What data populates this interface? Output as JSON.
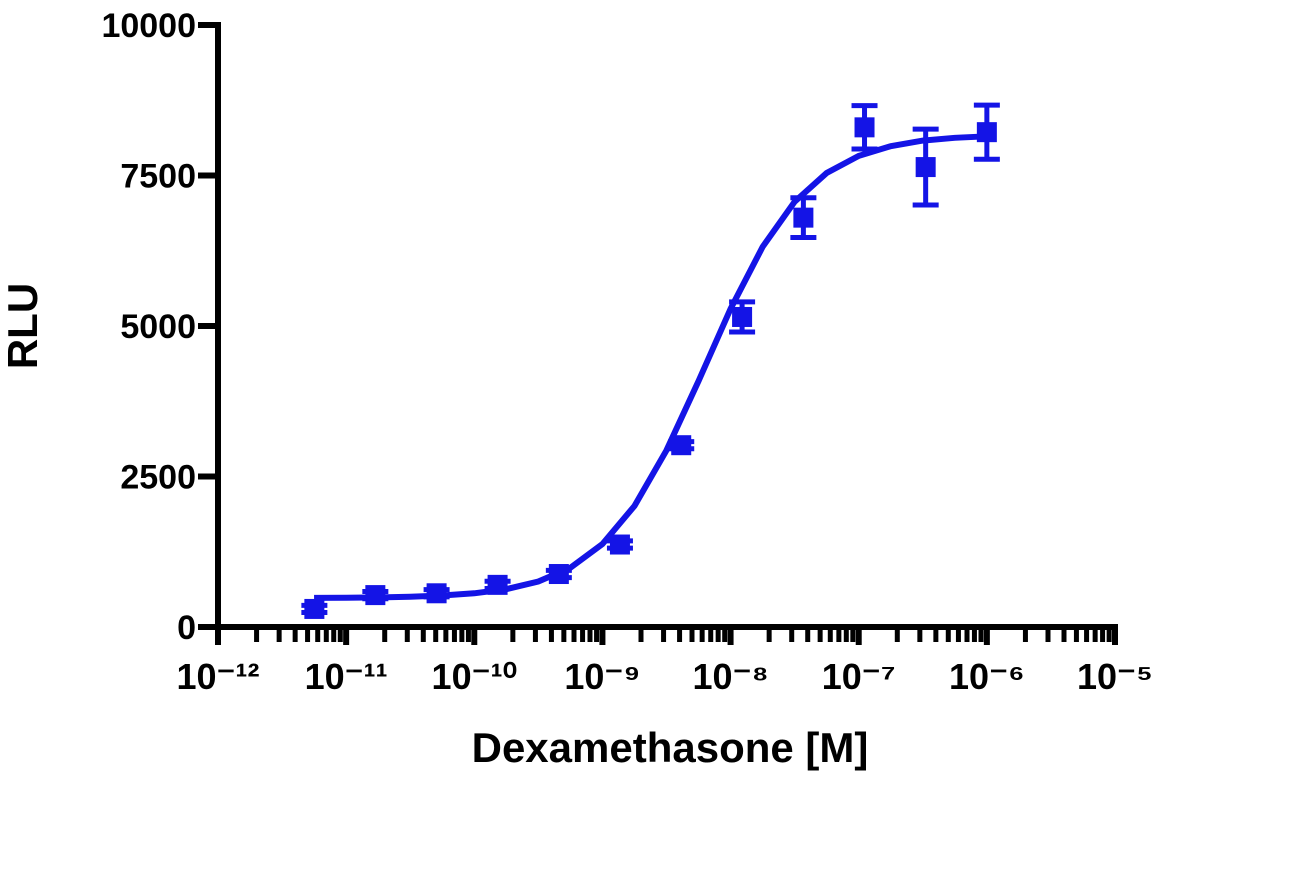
{
  "chart_data": {
    "type": "scatter",
    "xlabel": "Dexamethasone [M]",
    "ylabel": "RLU",
    "xscale": "log",
    "xlim": [
      1e-12,
      1e-05
    ],
    "xticks": [
      {
        "value": 1e-12,
        "label": "10⁻¹²"
      },
      {
        "value": 1e-11,
        "label": "10⁻¹¹"
      },
      {
        "value": 1e-10,
        "label": "10⁻¹⁰"
      },
      {
        "value": 1e-09,
        "label": "10⁻⁹"
      },
      {
        "value": 1e-08,
        "label": "10⁻⁸"
      },
      {
        "value": 1e-07,
        "label": "10⁻⁷"
      },
      {
        "value": 1e-06,
        "label": "10⁻⁶"
      },
      {
        "value": 1e-05,
        "label": "10⁻⁵"
      }
    ],
    "xminorticks": [
      2e-12,
      3e-12,
      4e-12,
      5e-12,
      6e-12,
      7e-12,
      8e-12,
      9e-12,
      2e-11,
      3e-11,
      4e-11,
      5e-11,
      6e-11,
      7e-11,
      8e-11,
      9e-11,
      2e-10,
      3e-10,
      4e-10,
      5e-10,
      6e-10,
      7e-10,
      8e-10,
      9e-10,
      2e-09,
      3e-09,
      4e-09,
      5e-09,
      6e-09,
      7e-09,
      8e-09,
      9e-09,
      2e-08,
      3e-08,
      4e-08,
      5e-08,
      6e-08,
      7e-08,
      8e-08,
      9e-08,
      2e-07,
      3e-07,
      4e-07,
      5e-07,
      6e-07,
      7e-07,
      8e-07,
      9e-07,
      2e-06,
      3e-06,
      4e-06,
      5e-06,
      6e-06,
      7e-06,
      8e-06,
      9e-06
    ],
    "ylim": [
      0,
      10000
    ],
    "yticks": [
      0,
      2500,
      5000,
      7500,
      10000
    ],
    "color": "#1414e6",
    "x": [
      5.65e-12,
      1.69e-11,
      5.08e-11,
      1.52e-10,
      4.57e-10,
      1.37e-09,
      4.12e-09,
      1.23e-08,
      3.7e-08,
      1.11e-07,
      3.33e-07,
      1e-06
    ],
    "values": [
      300,
      530,
      560,
      700,
      880,
      1370,
      3020,
      5150,
      6800,
      8300,
      7640,
      8220
    ],
    "errors": [
      60,
      60,
      60,
      60,
      60,
      60,
      60,
      250,
      330,
      360,
      630,
      450
    ],
    "fit": {
      "x": [
        5.62e-12,
        1e-11,
        1.78e-11,
        3.16e-11,
        5.62e-11,
        1e-10,
        1.78e-10,
        3.16e-10,
        5.62e-10,
        1e-09,
        1.78e-09,
        3.16e-09,
        5.62e-09,
        1e-08,
        1.78e-08,
        3.16e-08,
        5.62e-08,
        1e-07,
        1.78e-07,
        3.16e-07,
        5.62e-07,
        1e-06
      ],
      "values": [
        483,
        486,
        492,
        503,
        523,
        560,
        629,
        756,
        984,
        1378,
        2012,
        2935,
        4085,
        5285,
        6316,
        7063,
        7541,
        7826,
        7987,
        8080,
        8126,
        8151
      ]
    }
  }
}
